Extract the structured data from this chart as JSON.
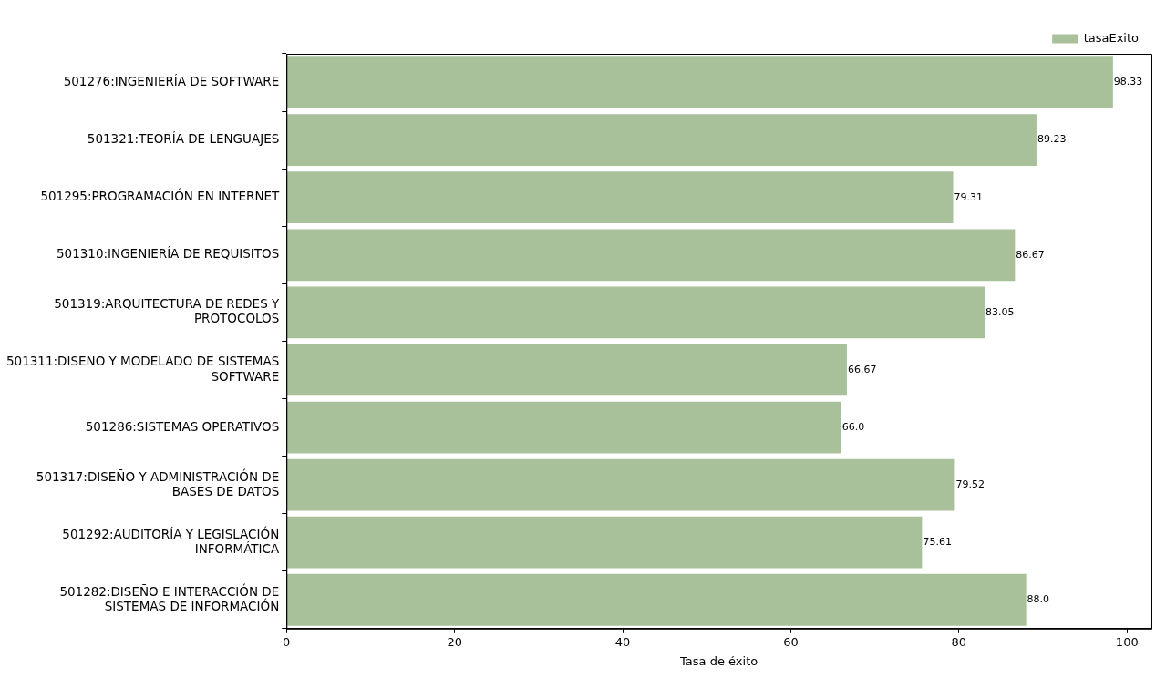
{
  "chart_data": {
    "type": "bar",
    "orientation": "horizontal",
    "xlabel": "Tasa de éxito",
    "categories": [
      "501276:INGENIERÍA DE SOFTWARE",
      "501321:TEORÍA DE LENGUAJES",
      "501295:PROGRAMACIÓN EN INTERNET",
      "501310:INGENIERÍA DE REQUISITOS",
      "501319:ARQUITECTURA DE REDES Y\nPROTOCOLOS",
      "501311:DISEÑO Y MODELADO DE SISTEMAS\nSOFTWARE",
      "501286:SISTEMAS OPERATIVOS",
      "501317:DISEÑO Y ADMINISTRACIÓN DE\nBASES DE DATOS",
      "501292:AUDITORÍA Y LEGISLACIÓN\nINFORMÁTICA",
      "501282:DISEÑO E INTERACCIÓN DE\nSISTEMAS DE INFORMACIÓN"
    ],
    "series": [
      {
        "name": "tasaExito",
        "color": "#a9c19a",
        "values": [
          98.33,
          89.23,
          79.31,
          86.67,
          83.05,
          66.67,
          66.0,
          79.52,
          75.61,
          88.0
        ],
        "value_labels": [
          "98.33",
          "89.23",
          "79.31",
          "86.67",
          "83.05",
          "66.67",
          "66.0",
          "79.52",
          "75.61",
          "88.0"
        ]
      }
    ],
    "xlim": [
      0,
      102.9
    ],
    "xticks": [
      0,
      20,
      40,
      60,
      80,
      100
    ],
    "grid": false,
    "legend": "top right"
  }
}
